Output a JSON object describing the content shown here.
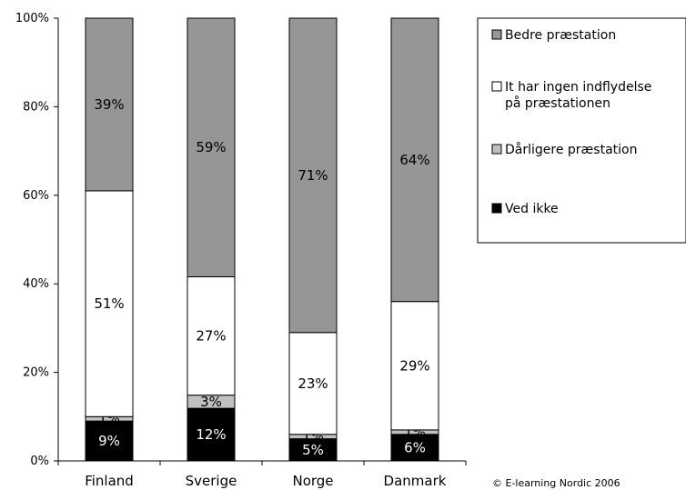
{
  "chart_data": {
    "type": "bar",
    "stacked": true,
    "categories": [
      "Finland",
      "Sverige",
      "Norge",
      "Danmark"
    ],
    "series": [
      {
        "name": "Ved ikke",
        "values": [
          9,
          12,
          5,
          6
        ],
        "labels": [
          "9%",
          "12%",
          "5%",
          "6%"
        ],
        "color": "#000000",
        "label_color": "#ffffff"
      },
      {
        "name": "Dårligere præstation",
        "values": [
          1,
          3,
          1,
          1
        ],
        "labels": [
          "1%",
          "3%",
          "1%",
          "1%"
        ],
        "color": "#c0c0c0",
        "label_color": "#000000"
      },
      {
        "name": "It har ingen indflydelse på præstationen",
        "values": [
          51,
          27,
          23,
          29
        ],
        "labels": [
          "51%",
          "27%",
          "23%",
          "29%"
        ],
        "color": "#ffffff",
        "label_color": "#000000"
      },
      {
        "name": "Bedre præstation",
        "values": [
          39,
          59,
          71,
          64
        ],
        "labels": [
          "39%",
          "59%",
          "71%",
          "64%"
        ],
        "color": "#969696",
        "label_color": "#000000"
      }
    ],
    "legend_order": [
      {
        "lines": [
          "Bedre præstation"
        ],
        "color": "#969696"
      },
      {
        "lines": [
          "It har ingen indflydelse",
          "på præstationen"
        ],
        "color": "#ffffff"
      },
      {
        "lines": [
          "Dårligere præstation"
        ],
        "color": "#c0c0c0"
      },
      {
        "lines": [
          "Ved ikke"
        ],
        "color": "#000000"
      }
    ],
    "y_ticks": [
      "0%",
      "20%",
      "40%",
      "60%",
      "80%",
      "100%"
    ],
    "ylim": [
      0,
      100
    ],
    "legend_position": "right",
    "grid": false
  },
  "copyright": "© E-learning Nordic 2006"
}
